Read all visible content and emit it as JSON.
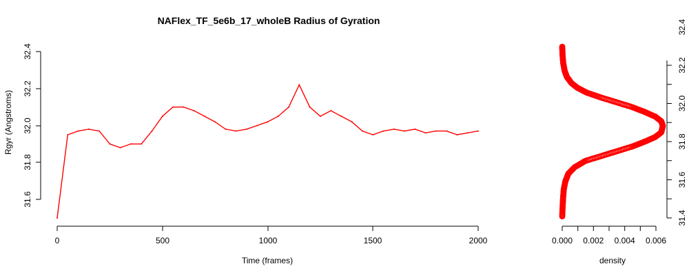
{
  "chart_data": [
    {
      "type": "line",
      "title": "NAFlex_TF_5e6b_17_wholeB Radius of Gyration",
      "xlabel": "Time (frames)",
      "ylabel": "Rgyr (Angstroms)",
      "xlim": [
        0,
        2000
      ],
      "ylim": [
        31.5,
        32.4
      ],
      "x_ticks": [
        "0",
        "500",
        "1000",
        "1500",
        "2000"
      ],
      "y_ticks": [
        "31.6",
        "31.8",
        "32.0",
        "32.2",
        "32.4"
      ],
      "grid": false,
      "legend": "none",
      "series": [
        {
          "color": "#ff0000",
          "x": [
            0,
            50,
            100,
            150,
            200,
            250,
            300,
            350,
            400,
            450,
            500,
            550,
            600,
            650,
            700,
            750,
            800,
            850,
            900,
            950,
            1000,
            1050,
            1100,
            1150,
            1200,
            1250,
            1300,
            1350,
            1400,
            1450,
            1500,
            1550,
            1600,
            1650,
            1700,
            1750,
            1800,
            1850,
            1900,
            1950,
            2000
          ],
          "y": [
            31.5,
            31.95,
            31.97,
            31.98,
            31.97,
            31.9,
            31.88,
            31.9,
            31.9,
            31.97,
            32.05,
            32.1,
            32.1,
            32.08,
            32.05,
            32.02,
            31.98,
            31.97,
            31.98,
            32.0,
            32.02,
            32.05,
            32.1,
            32.22,
            32.1,
            32.05,
            32.08,
            32.05,
            32.02,
            31.97,
            31.95,
            31.97,
            31.98,
            31.97,
            31.98,
            31.96,
            31.97,
            31.97,
            31.95,
            31.96,
            31.97
          ]
        }
      ]
    },
    {
      "type": "line",
      "title": "",
      "xlabel": "density",
      "ylabel": "",
      "xlim": [
        0,
        0.0065
      ],
      "ylim": [
        31.42,
        32.5
      ],
      "x_ticks": [
        "0.000",
        "0.002",
        "0.004",
        "0.006"
      ],
      "y_ticks": [
        "31.4",
        "31.6",
        "31.8",
        "32.0",
        "32.2",
        "32.4"
      ],
      "grid": false,
      "legend": "none",
      "series": [
        {
          "color": "#ff0000",
          "x": [
            0.0,
            3e-05,
            6e-05,
            0.0001,
            0.0002,
            0.0004,
            0.0008,
            0.0015,
            0.0025,
            0.0035,
            0.0045,
            0.0053,
            0.006,
            0.0064,
            0.0065,
            0.0064,
            0.006,
            0.0053,
            0.0045,
            0.0035,
            0.0025,
            0.0016,
            0.001,
            0.0006,
            0.0003,
            0.00015,
            6e-05,
            2e-05,
            0.0
          ],
          "y": [
            31.43,
            31.5,
            31.55,
            31.6,
            31.65,
            31.7,
            31.74,
            31.78,
            31.81,
            31.84,
            31.87,
            31.9,
            31.93,
            31.96,
            32.0,
            32.03,
            32.06,
            32.09,
            32.12,
            32.15,
            32.18,
            32.21,
            32.24,
            32.27,
            32.31,
            32.35,
            32.4,
            32.45,
            32.5
          ]
        }
      ]
    }
  ]
}
